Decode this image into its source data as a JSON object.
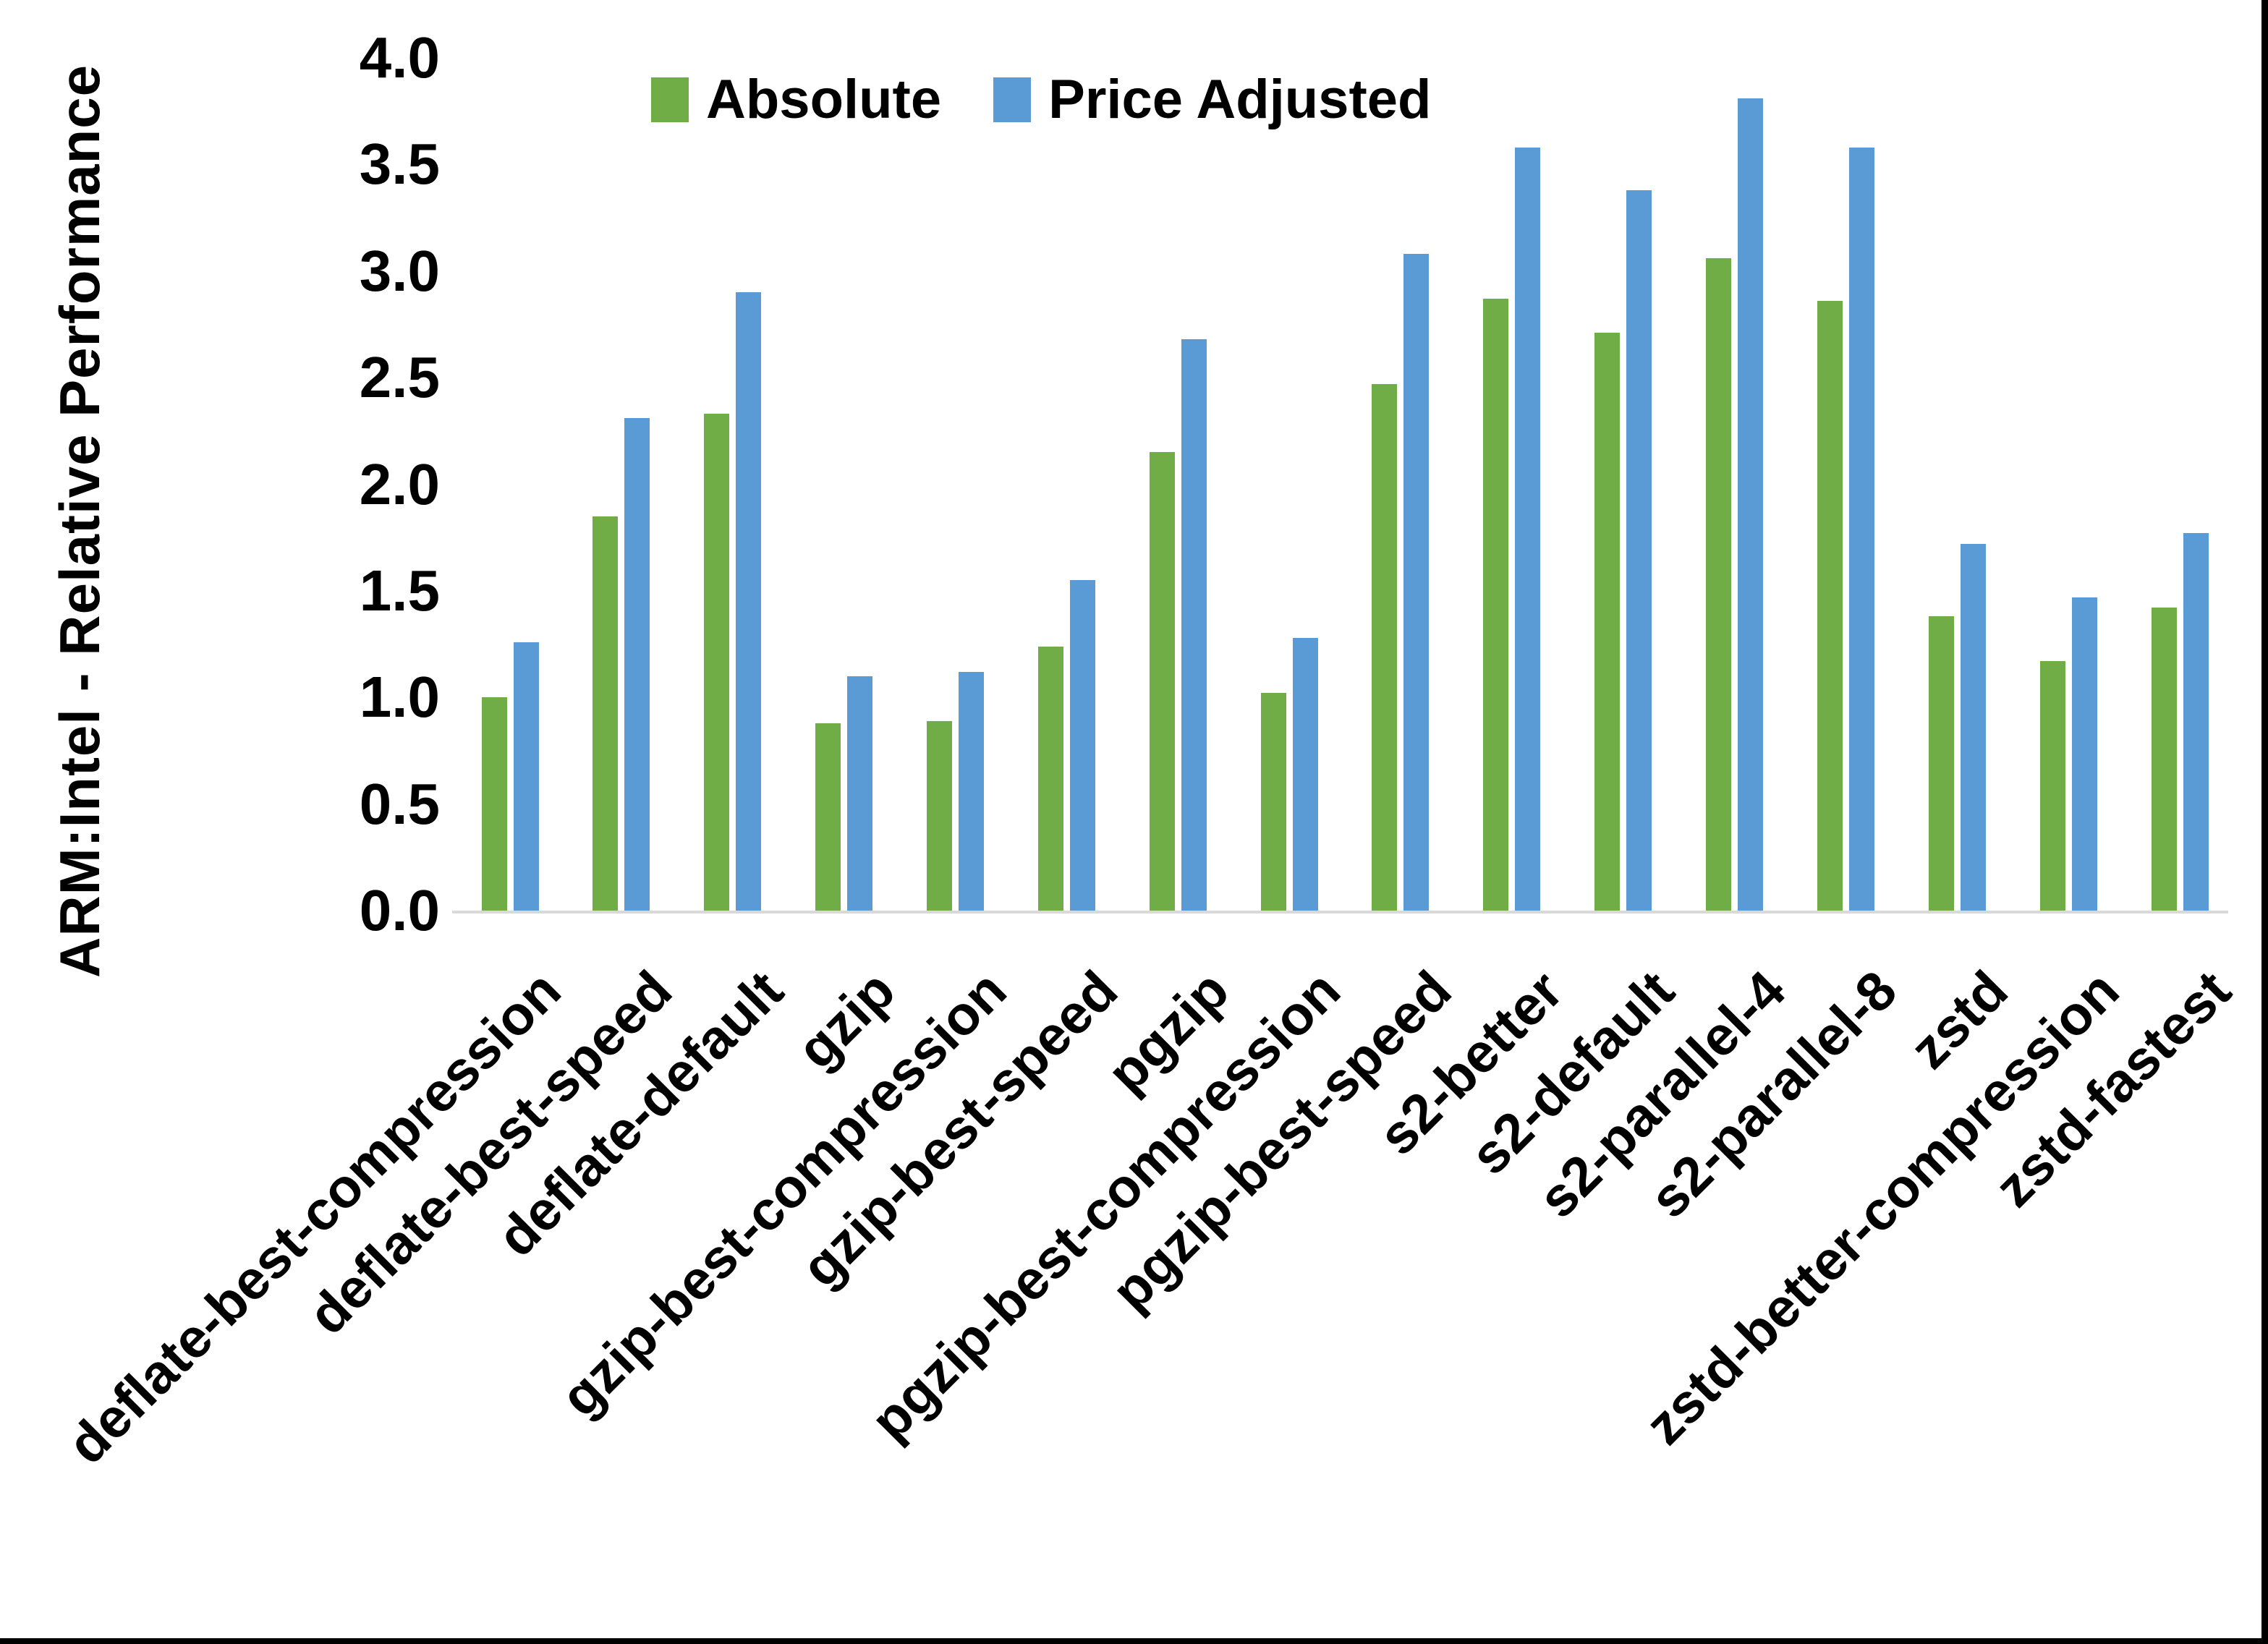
{
  "chart_data": {
    "type": "bar",
    "title": "",
    "xlabel": "",
    "ylabel": "ARM:Intel - Relative Performance",
    "ylim": [
      0.0,
      4.0
    ],
    "ytick_step": 0.5,
    "ytick_labels": [
      "0.0",
      "0.5",
      "1.0",
      "1.5",
      "2.0",
      "2.5",
      "3.0",
      "3.5",
      "4.0"
    ],
    "grid": false,
    "legend_position": "top-center",
    "categories": [
      "deflate-best-compression",
      "deflate-best-speed",
      "deflate-default",
      "gzip",
      "gzip-best-compression",
      "gzip-best-speed",
      "pgzip",
      "pgzip-best-compression",
      "pgzip-best-speed",
      "s2-better",
      "s2-default",
      "s2-parallel-4",
      "s2-parallel-8",
      "zstd",
      "zstd-better-compression",
      "zstd-fastest"
    ],
    "series": [
      {
        "name": "Absolute",
        "color": "#70AD47",
        "values": [
          1.0,
          1.85,
          2.33,
          0.88,
          0.89,
          1.24,
          2.15,
          1.02,
          2.47,
          2.87,
          2.71,
          3.06,
          2.86,
          1.38,
          1.17,
          1.42
        ]
      },
      {
        "name": "Price Adjusted",
        "color": "#5B9BD5",
        "values": [
          1.26,
          2.31,
          2.9,
          1.1,
          1.12,
          1.55,
          2.68,
          1.28,
          3.08,
          3.58,
          3.38,
          3.81,
          3.58,
          1.72,
          1.47,
          1.77
        ]
      }
    ],
    "colors": {
      "axis_line": "#D9D9D9",
      "text": "#000000",
      "frame": "#000000"
    }
  }
}
